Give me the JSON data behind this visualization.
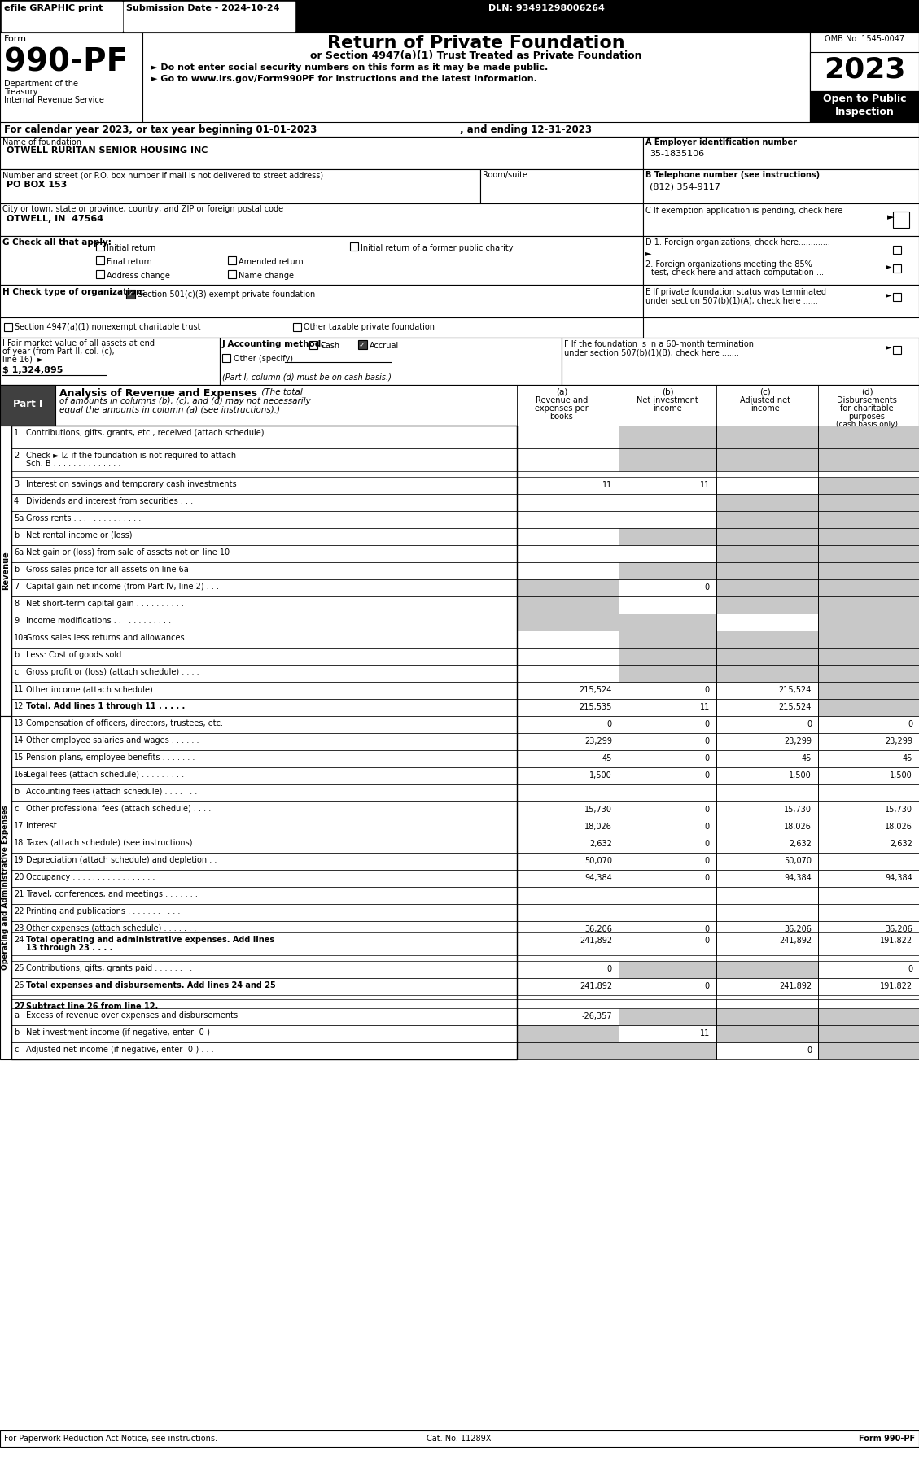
{
  "efile_text": "efile GRAPHIC print",
  "submission_date": "Submission Date - 2024-10-24",
  "dln": "DLN: 93491298006264",
  "form_number": "990-PF",
  "form_label": "Form",
  "title_main": "Return of Private Foundation",
  "title_sub": "or Section 4947(a)(1) Trust Treated as Private Foundation",
  "bullet1": "► Do not enter social security numbers on this form as it may be made public.",
  "bullet2": "► Go to www.irs.gov/Form990PF for instructions and the latest information.",
  "dept_line1": "Department of the",
  "dept_line2": "Treasury",
  "dept_line3": "Internal Revenue Service",
  "omb": "OMB No. 1545-0047",
  "year": "2023",
  "open_public": "Open to Public",
  "inspection": "Inspection",
  "cal_year": "For calendar year 2023, or tax year beginning 01-01-2023",
  "and_ending": ", and ending 12-31-2023",
  "name_label": "Name of foundation",
  "name_value": "OTWELL RURITAN SENIOR HOUSING INC",
  "ein_label": "A Employer identification number",
  "ein_value": "35-1835106",
  "addr_label": "Number and street (or P.O. box number if mail is not delivered to street address)",
  "addr_room": "Room/suite",
  "addr_value": "PO BOX 153",
  "phone_label": "B Telephone number (see instructions)",
  "phone_value": "(812) 354-9117",
  "city_label": "City or town, state or province, country, and ZIP or foreign postal code",
  "city_value": "OTWELL, IN  47564",
  "c_label": "C If exemption application is pending, check here",
  "g_label": "G Check all that apply:",
  "g_opt1": "Initial return",
  "g_opt2": "Initial return of a former public charity",
  "g_opt3": "Final return",
  "g_opt4": "Amended return",
  "g_opt5": "Address change",
  "g_opt6": "Name change",
  "d1_label": "D 1. Foreign organizations, check here.............",
  "d2_label": "2. Foreign organizations meeting the 85% test, check here and attach computation ...",
  "e_label": "E If private foundation status was terminated under section 507(b)(1)(A), check here ......",
  "h_label": "H Check type of organization:",
  "h_opt1": "Section 501(c)(3) exempt private foundation",
  "h_opt2": "Section 4947(a)(1) nonexempt charitable trust",
  "h_opt3": "Other taxable private foundation",
  "i_label": "I Fair market value of all assets at end of year (from Part II, col. (c), line 16)",
  "i_value": "$ 1,324,895",
  "j_label": "J Accounting method:",
  "j_cash": "Cash",
  "j_accrual": "Accrual",
  "j_other": "Other (specify)",
  "j_note": "(Part I, column (d) must be on cash basis.)",
  "f_label": "F If the foundation is in a 60-month termination under section 507(b)(1)(B), check here .......",
  "part1_label": "Part I",
  "part1_title": "Analysis of Revenue and Expenses",
  "part1_subtitle": "(The total of amounts in columns (b), (c), and (d) may not necessarily equal the amounts in column (a) (see instructions).)",
  "col_a": "(a)  Revenue and\nexpenses per\nbooks",
  "col_b": "(b)  Net investment\nincome",
  "col_c": "(c)  Adjusted net\nincome",
  "col_d": "(d)  Disbursements\nfor charitable\npurposes\n(cash basis only)",
  "rows": [
    {
      "num": "1",
      "label": "Contributions, gifts, grants, etc., received (attach schedule)",
      "dots": false,
      "a": "",
      "b": "",
      "c": "",
      "d": "",
      "shaded_b": true,
      "shaded_c": true,
      "shaded_d": true
    },
    {
      "num": "2",
      "label": "Check ► ☑ if the foundation is not required to attach Sch. B . . . . . . . . . . . . . .",
      "dots": false,
      "a": "",
      "b": "",
      "c": "",
      "d": "",
      "shaded_b": true,
      "shaded_c": true,
      "shaded_d": true
    },
    {
      "num": "3",
      "label": "Interest on savings and temporary cash investments",
      "dots": false,
      "a": "11",
      "b": "11",
      "c": "",
      "d": "",
      "shaded_c": false,
      "shaded_b": false,
      "shaded_d": true
    },
    {
      "num": "4",
      "label": "Dividends and interest from securities . . .",
      "dots": false,
      "a": "",
      "b": "",
      "c": "",
      "d": "",
      "shaded_b": false,
      "shaded_c": true,
      "shaded_d": true
    },
    {
      "num": "5a",
      "label": "Gross rents . . . . . . . . . . . . . .",
      "dots": false,
      "a": "",
      "b": "",
      "c": "",
      "d": "",
      "shaded_b": false,
      "shaded_c": true,
      "shaded_d": true
    },
    {
      "num": "b",
      "label": "Net rental income or (loss)",
      "dots": false,
      "a": "",
      "b": "",
      "c": "",
      "d": "",
      "shaded_b": true,
      "shaded_c": true,
      "shaded_d": true
    },
    {
      "num": "6a",
      "label": "Net gain or (loss) from sale of assets not on line 10",
      "dots": false,
      "a": "",
      "b": "",
      "c": "",
      "d": "",
      "shaded_b": false,
      "shaded_c": true,
      "shaded_d": true
    },
    {
      "num": "b",
      "label": "Gross sales price for all assets on line 6a",
      "dots": false,
      "a": "",
      "b": "",
      "c": "",
      "d": "",
      "shaded_b": true,
      "shaded_c": true,
      "shaded_d": true
    },
    {
      "num": "7",
      "label": "Capital gain net income (from Part IV, line 2) . . .",
      "dots": false,
      "a": "",
      "b": "0",
      "c": "",
      "d": "",
      "shaded_a": true,
      "shaded_c": true,
      "shaded_d": true
    },
    {
      "num": "8",
      "label": "Net short-term capital gain . . . . . . . . . .",
      "dots": false,
      "a": "",
      "b": "",
      "c": "",
      "d": "",
      "shaded_a": true,
      "shaded_c": true,
      "shaded_d": true
    },
    {
      "num": "9",
      "label": "Income modifications . . . . . . . . . . . .",
      "dots": false,
      "a": "",
      "b": "",
      "c": "",
      "d": "",
      "shaded_a": true,
      "shaded_b": true,
      "shaded_d": true
    },
    {
      "num": "10a",
      "label": "Gross sales less returns and allowances",
      "dots": false,
      "a": "",
      "b": "",
      "c": "",
      "d": "",
      "shaded_b": true,
      "shaded_c": true,
      "shaded_d": true
    },
    {
      "num": "b",
      "label": "Less: Cost of goods sold . . . . .",
      "dots": false,
      "a": "",
      "b": "",
      "c": "",
      "d": "",
      "shaded_b": true,
      "shaded_c": true,
      "shaded_d": true
    },
    {
      "num": "c",
      "label": "Gross profit or (loss) (attach schedule) . . . .",
      "dots": false,
      "a": "",
      "b": "",
      "c": "",
      "d": "",
      "shaded_b": true,
      "shaded_c": true,
      "shaded_d": true
    },
    {
      "num": "11",
      "label": "Other income (attach schedule) . . . . . . . .",
      "dots": false,
      "a": "215,524",
      "b": "0",
      "c": "215,524",
      "d": "",
      "shaded_d": true
    },
    {
      "num": "12",
      "label": "Total. Add lines 1 through 11 . . . . .",
      "dots": false,
      "a": "215,535",
      "b": "11",
      "c": "215,524",
      "d": "",
      "bold_label": true,
      "shaded_d": true
    },
    {
      "num": "13",
      "label": "Compensation of officers, directors, trustees, etc.",
      "dots": false,
      "a": "0",
      "b": "0",
      "c": "0",
      "d": "0"
    },
    {
      "num": "14",
      "label": "Other employee salaries and wages . . . . . .",
      "dots": false,
      "a": "23,299",
      "b": "0",
      "c": "23,299",
      "d": "23,299"
    },
    {
      "num": "15",
      "label": "Pension plans, employee benefits . . . . . . .",
      "dots": false,
      "a": "45",
      "b": "0",
      "c": "45",
      "d": "45"
    },
    {
      "num": "16a",
      "label": "Legal fees (attach schedule) . . . . . . . . .",
      "dots": false,
      "a": "1,500",
      "b": "0",
      "c": "1,500",
      "d": "1,500"
    },
    {
      "num": "b",
      "label": "Accounting fees (attach schedule) . . . . . . .",
      "dots": false,
      "a": "",
      "b": "",
      "c": "",
      "d": ""
    },
    {
      "num": "c",
      "label": "Other professional fees (attach schedule) . . . .",
      "dots": false,
      "a": "15,730",
      "b": "0",
      "c": "15,730",
      "d": "15,730"
    },
    {
      "num": "17",
      "label": "Interest . . . . . . . . . . . . . . . . . .",
      "dots": false,
      "a": "18,026",
      "b": "0",
      "c": "18,026",
      "d": "18,026"
    },
    {
      "num": "18",
      "label": "Taxes (attach schedule) (see instructions) . . .",
      "dots": false,
      "a": "2,632",
      "b": "0",
      "c": "2,632",
      "d": "2,632"
    },
    {
      "num": "19",
      "label": "Depreciation (attach schedule) and depletion . .",
      "dots": false,
      "a": "50,070",
      "b": "0",
      "c": "50,070",
      "d": ""
    },
    {
      "num": "20",
      "label": "Occupancy . . . . . . . . . . . . . . . . .",
      "dots": false,
      "a": "94,384",
      "b": "0",
      "c": "94,384",
      "d": "94,384"
    },
    {
      "num": "21",
      "label": "Travel, conferences, and meetings . . . . . . .",
      "dots": false,
      "a": "",
      "b": "",
      "c": "",
      "d": ""
    },
    {
      "num": "22",
      "label": "Printing and publications . . . . . . . . . . .",
      "dots": false,
      "a": "",
      "b": "",
      "c": "",
      "d": ""
    },
    {
      "num": "23",
      "label": "Other expenses (attach schedule) . . . . . . .",
      "dots": false,
      "a": "36,206",
      "b": "0",
      "c": "36,206",
      "d": "36,206"
    },
    {
      "num": "24",
      "label": "Total operating and administrative expenses. Add lines 13 through 23 . . . .",
      "dots": false,
      "a": "241,892",
      "b": "0",
      "c": "241,892",
      "d": "191,822",
      "bold_label": true
    },
    {
      "num": "25",
      "label": "Contributions, gifts, grants paid . . . . . . . .",
      "dots": false,
      "a": "0",
      "b": "",
      "c": "",
      "d": "0",
      "shaded_b": true,
      "shaded_c": true
    },
    {
      "num": "26",
      "label": "Total expenses and disbursements. Add lines 24 and 25",
      "dots": false,
      "a": "241,892",
      "b": "0",
      "c": "241,892",
      "d": "191,822",
      "bold_label": true
    },
    {
      "num": "27",
      "label": "Subtract line 26 from line 12.",
      "dots": false,
      "a": "",
      "b": "",
      "c": "",
      "d": "",
      "bold_label": true,
      "header_row": true
    },
    {
      "num": "a",
      "label": "Excess of revenue over expenses and disbursements",
      "dots": false,
      "a": "-26,357",
      "b": "",
      "c": "",
      "d": "",
      "shaded_b": true,
      "shaded_c": true,
      "shaded_d": true
    },
    {
      "num": "b",
      "label": "Net investment income (if negative, enter -0-)",
      "dots": false,
      "a": "",
      "b": "11",
      "c": "",
      "d": "",
      "shaded_a": true,
      "shaded_c": true,
      "shaded_d": true
    },
    {
      "num": "c",
      "label": "Adjusted net income (if negative, enter -0-) . . .",
      "dots": false,
      "a": "",
      "b": "",
      "c": "0",
      "d": "",
      "shaded_a": true,
      "shaded_b": true,
      "shaded_d": true
    }
  ],
  "revenue_label": "Revenue",
  "expense_label": "Operating and Administrative Expenses",
  "footer_left": "For Paperwork Reduction Act Notice, see instructions.",
  "footer_cat": "Cat. No. 11289X",
  "footer_right": "Form 990-PF",
  "bg_color": "#ffffff",
  "header_bg": "#000000",
  "shaded_color": "#c0c0c0",
  "light_shaded": "#d3d3d3",
  "part_header_bg": "#404040"
}
